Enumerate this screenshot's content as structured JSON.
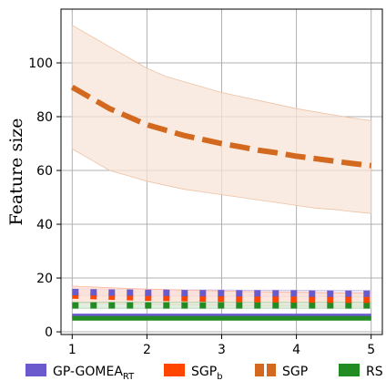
{
  "chart_data": {
    "type": "line",
    "title": "",
    "xlabel": "",
    "ylabel": "Feature size",
    "xlim": [
      0.85,
      5.15
    ],
    "ylim": [
      -1,
      120
    ],
    "xticks": [
      1,
      2,
      3,
      4,
      5
    ],
    "yticks": [
      0,
      20,
      40,
      60,
      80,
      100
    ],
    "grid": true,
    "legend_position": "bottom",
    "x": [
      1,
      1.25,
      1.5,
      1.75,
      2,
      2.25,
      2.5,
      2.75,
      3,
      3.25,
      3.5,
      3.75,
      4,
      4.25,
      4.5,
      4.75,
      5
    ],
    "series": [
      {
        "name": "GP-GOMEA_RT",
        "legend_main": "GP-GOMEA",
        "legend_sub": "RT",
        "color": "#6a5acd",
        "style": "dotted",
        "values": [
          14.8,
          14.7,
          14.6,
          14.6,
          14.5,
          14.5,
          14.4,
          14.4,
          14.4,
          14.3,
          14.3,
          14.3,
          14.3,
          14.2,
          14.2,
          14.2,
          14.2
        ],
        "band_low": [
          13.5,
          13.5,
          13.4,
          13.4,
          13.3,
          13.3,
          13.3,
          13.2,
          13.2,
          13.2,
          13.2,
          13.1,
          13.1,
          13.1,
          13.1,
          13.1,
          13.0
        ],
        "band_high": [
          16.0,
          15.9,
          15.8,
          15.8,
          15.7,
          15.7,
          15.6,
          15.6,
          15.6,
          15.5,
          15.5,
          15.5,
          15.5,
          15.4,
          15.4,
          15.4,
          15.4
        ]
      },
      {
        "name": "SGP_b",
        "legend_main": "SGP",
        "legend_sub": "b",
        "color": "#ff4500",
        "style": "dotted",
        "values": [
          13.5,
          13.3,
          13.1,
          12.9,
          12.7,
          12.6,
          12.5,
          12.4,
          12.3,
          12.2,
          12.1,
          12.1,
          12.0,
          12.0,
          11.9,
          11.9,
          11.9
        ],
        "band_low": [
          10.8,
          10.6,
          10.5,
          10.3,
          10.2,
          10.1,
          10.0,
          9.9,
          9.8,
          9.7,
          9.7,
          9.6,
          9.6,
          9.5,
          9.5,
          9.5,
          9.4
        ],
        "band_high": [
          17.0,
          16.7,
          16.4,
          16.1,
          15.9,
          15.7,
          15.5,
          15.3,
          15.2,
          15.0,
          14.9,
          14.8,
          14.7,
          14.6,
          14.5,
          14.4,
          14.4
        ]
      },
      {
        "name": "SGP",
        "legend_main": "SGP",
        "legend_sub": "",
        "color": "#d2691e",
        "style": "dashed",
        "values": [
          91,
          87,
          83,
          80,
          77,
          75,
          73,
          71.5,
          70,
          68.8,
          67.5,
          66.5,
          65.3,
          64.4,
          63.5,
          62.6,
          61.8
        ],
        "band_low": [
          68,
          64,
          60,
          58,
          56,
          54.5,
          53,
          52,
          51,
          50,
          49,
          48,
          47,
          46,
          45.5,
          44.7,
          44
        ],
        "band_high": [
          114,
          110,
          106,
          102,
          98,
          95,
          93,
          91,
          89,
          87.5,
          86,
          84.5,
          83,
          81.8,
          80.6,
          79.5,
          78.5
        ]
      },
      {
        "name": "RS",
        "legend_main": "RS",
        "legend_sub": "",
        "color": "#228b22",
        "style": "dotted",
        "values": [
          9.8,
          9.8,
          9.8,
          9.8,
          9.8,
          9.8,
          9.8,
          9.8,
          9.8,
          9.8,
          9.8,
          9.8,
          9.8,
          9.8,
          9.8,
          9.8,
          9.8
        ],
        "band_low": [
          8.8,
          8.8,
          8.8,
          8.8,
          8.8,
          8.8,
          8.8,
          8.8,
          8.8,
          8.8,
          8.8,
          8.8,
          8.8,
          8.8,
          8.8,
          8.8,
          8.8
        ],
        "band_high": [
          11.0,
          11.0,
          11.0,
          11.0,
          11.0,
          11.0,
          11.0,
          11.0,
          11.0,
          11.0,
          11.0,
          11.0,
          11.0,
          11.0,
          11.0,
          11.0,
          11.0
        ]
      },
      {
        "name": "GP-GOMEA_RT baseline",
        "legend_main": "",
        "legend_sub": "",
        "color": "#6a5acd",
        "style": "solid",
        "values": [
          5.9,
          5.9,
          5.9,
          5.9,
          5.9,
          5.9,
          5.9,
          5.9,
          5.9,
          5.9,
          5.9,
          5.9,
          5.9,
          5.9,
          5.9,
          5.9,
          5.9
        ],
        "band_low": null,
        "band_high": null
      },
      {
        "name": "RS baseline",
        "legend_main": "",
        "legend_sub": "",
        "color": "#228b22",
        "style": "solid",
        "values": [
          5.0,
          5.0,
          5.0,
          5.0,
          5.0,
          5.0,
          5.0,
          5.0,
          5.0,
          5.0,
          5.0,
          5.0,
          5.0,
          5.0,
          5.0,
          5.0,
          5.0
        ],
        "band_low": null,
        "band_high": null
      }
    ]
  }
}
